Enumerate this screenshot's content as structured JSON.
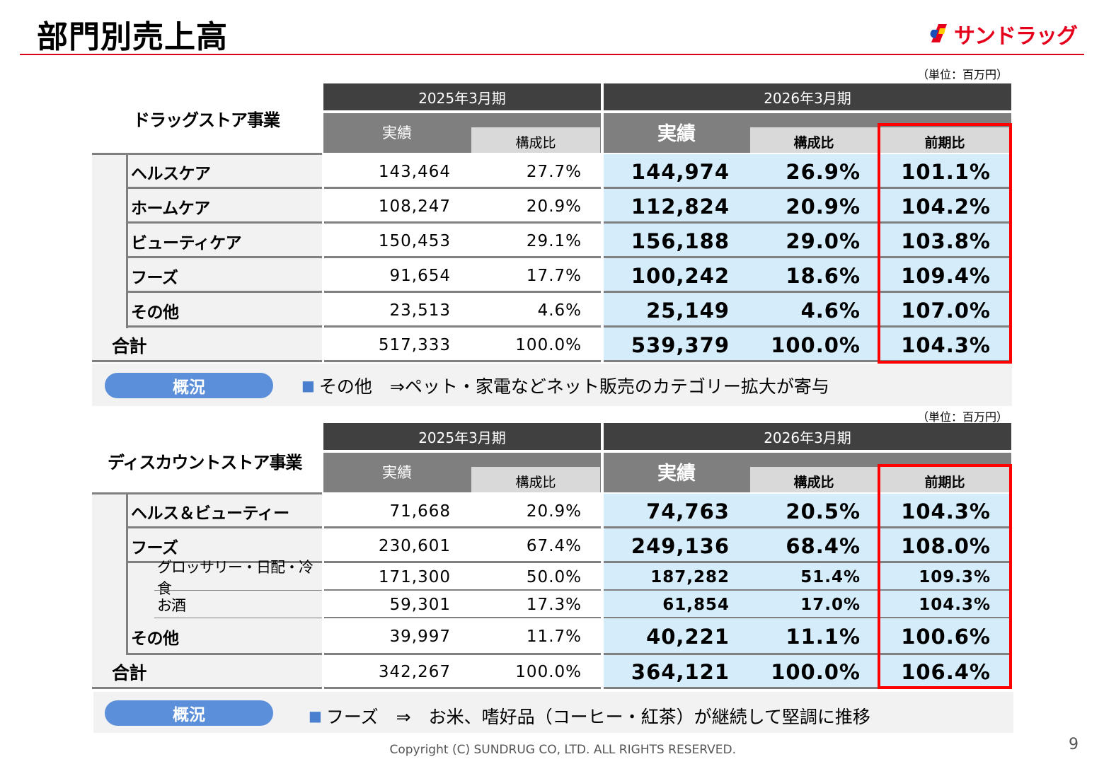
{
  "title": "部門別売上高",
  "logo_text": "サンドラッグ",
  "unit": "（単位：百万円）",
  "drug": {
    "label": "ドラッグストア事業",
    "period_prev": "2025年3月期",
    "period_cur": "2026年3月期",
    "col_actual": "実績",
    "col_comp": "構成比",
    "col_actual_cur": "実績",
    "col_comp_cur": "構成比",
    "col_yoy": "前期比",
    "rows": [
      {
        "label": "ヘルスケア",
        "prev": "143,464",
        "prev_comp": "27.7%",
        "cur": "144,974",
        "cur_comp": "26.9%",
        "yoy": "101.1%"
      },
      {
        "label": "ホームケア",
        "prev": "108,247",
        "prev_comp": "20.9%",
        "cur": "112,824",
        "cur_comp": "20.9%",
        "yoy": "104.2%"
      },
      {
        "label": "ビューティケア",
        "prev": "150,453",
        "prev_comp": "29.1%",
        "cur": "156,188",
        "cur_comp": "29.0%",
        "yoy": "103.8%"
      },
      {
        "label": "フーズ",
        "prev": "91,654",
        "prev_comp": "17.7%",
        "cur": "100,242",
        "cur_comp": "18.6%",
        "yoy": "109.4%"
      },
      {
        "label": "その他",
        "prev": "23,513",
        "prev_comp": "4.6%",
        "cur": "25,149",
        "cur_comp": "4.6%",
        "yoy": "107.0%"
      },
      {
        "label": "合計",
        "prev": "517,333",
        "prev_comp": "100.0%",
        "cur": "539,379",
        "cur_comp": "100.0%",
        "yoy": "104.3%"
      }
    ],
    "summary_label": "概況",
    "summary_bullet": "■",
    "summary_text": "その他　⇒ペット・家電などネット販売のカテゴリー拡大が寄与"
  },
  "discount": {
    "label": "ディスカウントストア事業",
    "period_prev": "2025年3月期",
    "period_cur": "2026年3月期",
    "col_actual": "実績",
    "col_comp": "構成比",
    "col_actual_cur": "実績",
    "col_comp_cur": "構成比",
    "col_yoy": "前期比",
    "rows": [
      {
        "label": "ヘルス＆ビューティー",
        "prev": "71,668",
        "prev_comp": "20.9%",
        "cur": "74,763",
        "cur_comp": "20.5%",
        "yoy": "104.3%"
      },
      {
        "label": "フーズ",
        "prev": "230,601",
        "prev_comp": "67.4%",
        "cur": "249,136",
        "cur_comp": "68.4%",
        "yoy": "108.0%"
      },
      {
        "label": "グロッサリー・日配・冷食",
        "prev": "171,300",
        "prev_comp": "50.0%",
        "cur": "187,282",
        "cur_comp": "51.4%",
        "yoy": "109.3%"
      },
      {
        "label": "お酒",
        "prev": "59,301",
        "prev_comp": "17.3%",
        "cur": "61,854",
        "cur_comp": "17.0%",
        "yoy": "104.3%"
      },
      {
        "label": "その他",
        "prev": "39,997",
        "prev_comp": "11.7%",
        "cur": "40,221",
        "cur_comp": "11.1%",
        "yoy": "100.6%"
      },
      {
        "label": "合計",
        "prev": "342,267",
        "prev_comp": "100.0%",
        "cur": "364,121",
        "cur_comp": "100.0%",
        "yoy": "106.4%"
      }
    ],
    "summary_label": "概況",
    "summary_bullet": "■",
    "summary_text": "フーズ　⇒　お米、嗜好品（コーヒー・紅茶）が継続して堅調に推移"
  },
  "footer": "Copyright (C)  SUNDRUG CO, LTD. ALL RIGHTS RESERVED.",
  "page_number": "9",
  "colors": {
    "accent_red": "#ff0000",
    "header_dark": "#404040",
    "header_mid": "#7f7f7f",
    "cell_blue": "#d5ecfa",
    "pill_blue": "#5b8fd9"
  }
}
